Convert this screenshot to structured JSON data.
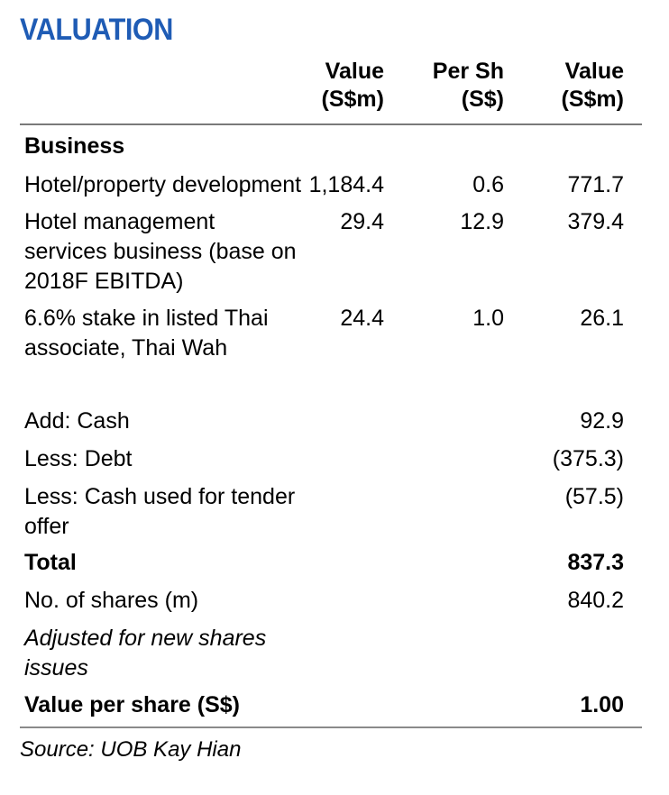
{
  "title": "VALUATION",
  "headers": {
    "col1": [
      "Value",
      "(S$m)"
    ],
    "col2": [
      "Per Sh",
      "(S$)"
    ],
    "col3": [
      "Value",
      "(S$m)"
    ]
  },
  "rows": {
    "business": {
      "label": "Business"
    },
    "hotel_property": {
      "label": "Hotel/property development",
      "c1": "1,184.4",
      "c2": "0.6",
      "c3": "771.7"
    },
    "hotel_mgmt": {
      "label": [
        "Hotel management",
        "services business (base on",
        "2018F EBITDA)"
      ],
      "c1": "29.4",
      "c2": "12.9",
      "c3": "379.4"
    },
    "thai_stake": {
      "label": [
        "6.6% stake in listed Thai",
        "associate, Thai Wah"
      ],
      "c1": "24.4",
      "c2": "1.0",
      "c3": "26.1"
    },
    "add_cash": {
      "label": "Add: Cash",
      "c3": "92.9"
    },
    "less_debt": {
      "label": "Less: Debt",
      "c3": "(375.3)"
    },
    "less_tender": {
      "label": [
        "Less: Cash used for tender",
        "offer"
      ],
      "c3": "(57.5)"
    },
    "total": {
      "label": "Total",
      "c3": "837.3"
    },
    "shares": {
      "label": "No. of shares (m)",
      "c3": "840.2"
    },
    "adjusted": {
      "label": [
        "Adjusted for new shares",
        "issues"
      ]
    },
    "value_per_share": {
      "label": "Value per share (S$)",
      "c3": "1.00"
    }
  },
  "source": "Source: UOB Kay Hian"
}
